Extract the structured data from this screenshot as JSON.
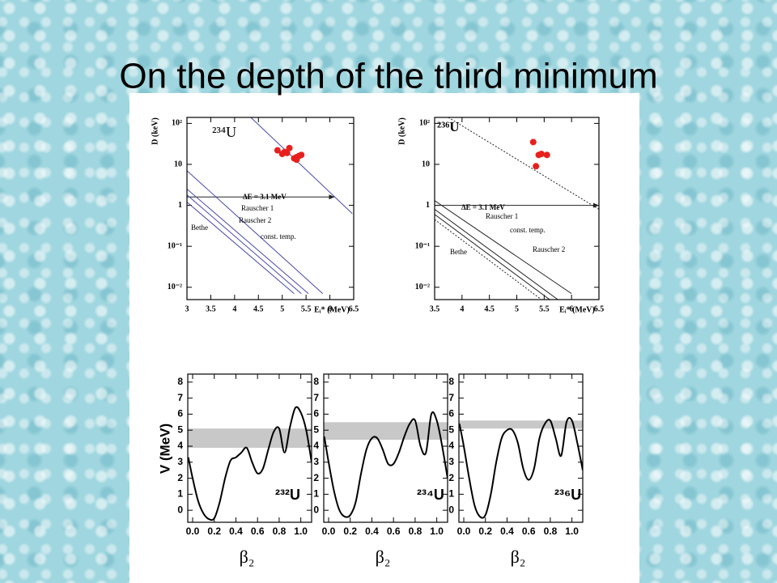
{
  "title": "On the depth of the third minimum",
  "chart_data": [
    {
      "type": "line",
      "log_y": true,
      "isotope": "²³⁴U",
      "ylabel": "D (keV)",
      "xlabel": "Eᵢ* (MeV)",
      "xlim": [
        3,
        6.5
      ],
      "xticks": [
        3,
        3.5,
        4,
        4.5,
        5,
        5.5,
        6,
        6.5
      ],
      "ylim": [
        0.005,
        140
      ],
      "yticks": [
        {
          "value": 0.01,
          "label": "10⁻²"
        },
        {
          "value": 0.1,
          "label": "10⁻¹"
        },
        1,
        10,
        {
          "value": 100,
          "label": "10²"
        }
      ],
      "annotation": {
        "text": "ΔE = 3.1 MeV",
        "x": [
          3,
          6.1
        ],
        "y": 1.6
      },
      "series": [
        {
          "color": "#4848a8",
          "x": [
            4.34,
            6.47
          ],
          "values": [
            140,
            0.63
          ]
        },
        {
          "name": "Rauscher 1",
          "color": "#4848a8",
          "x": [
            3,
            5.85
          ],
          "values": [
            7,
            0.007
          ]
        },
        {
          "name": "Rauscher 2",
          "color": "#4848a8",
          "x": [
            3,
            5.55
          ],
          "values": [
            2.5,
            0.007
          ]
        },
        {
          "name": "const. temp.",
          "color": "#4848a8",
          "x": [
            3,
            5.4
          ],
          "values": [
            1.8,
            0.007
          ]
        },
        {
          "name": "Bethe",
          "color": "#4848a8",
          "x": [
            3,
            5.25
          ],
          "values": [
            1.2,
            0.007
          ]
        },
        {
          "marker": "dot",
          "color": "#e8201c",
          "x": [
            4.9,
            5.0,
            5.05,
            5.1,
            5.15,
            5.25,
            5.3,
            5.35,
            5.4,
            5.3
          ],
          "values": [
            22,
            18,
            20,
            19,
            25,
            14,
            15,
            16,
            17,
            13
          ]
        }
      ]
    },
    {
      "type": "line",
      "log_y": true,
      "isotope": "²³⁶U",
      "ylabel": "D (keV)",
      "xlabel": "Eᵢ* (MeV)",
      "xlim": [
        3.5,
        6.5
      ],
      "xticks": [
        3.5,
        4,
        4.5,
        5,
        5.5,
        6,
        6.5
      ],
      "ylim": [
        0.005,
        140
      ],
      "yticks": [
        {
          "value": 0.01,
          "label": "10⁻²"
        },
        {
          "value": 0.1,
          "label": "10⁻¹"
        },
        1,
        10,
        {
          "value": 100,
          "label": "10²"
        }
      ],
      "annotation": {
        "text": "ΔE = 3.1 MeV",
        "x": [
          3.5,
          6.5
        ],
        "y": 1.0
      },
      "series": [
        {
          "color": "#222222",
          "dash": "dotted",
          "x": [
            3.75,
            6.5
          ],
          "values": [
            140,
            0.8
          ]
        },
        {
          "name": "Rauscher 1",
          "color": "#222222",
          "x": [
            3.5,
            6.0
          ],
          "values": [
            1.3,
            0.007
          ]
        },
        {
          "name": "const. temp.",
          "color": "#222222",
          "x": [
            3.5,
            5.75
          ],
          "values": [
            0.8,
            0.005
          ]
        },
        {
          "name": "Rauscher 2",
          "color": "#222222",
          "x": [
            3.5,
            5.6
          ],
          "values": [
            0.6,
            0.005
          ]
        },
        {
          "name": "Bethe",
          "color": "#222222",
          "dash": "dotted",
          "x": [
            3.5,
            5.45
          ],
          "values": [
            0.45,
            0.005
          ]
        },
        {
          "marker": "dot",
          "color": "#e8201c",
          "x": [
            5.3,
            5.35,
            5.4,
            5.45,
            5.55
          ],
          "values": [
            35,
            9,
            17,
            18,
            17
          ]
        }
      ]
    },
    {
      "type": "line",
      "isotope": "²³²U",
      "ylabel": "V (MeV)",
      "xlabel": "β₂",
      "xlim": [
        -0.045,
        1.1
      ],
      "ylim": [
        -0.75,
        8.5
      ],
      "xticks": [
        {
          "value": 0,
          "label": "0.0"
        },
        {
          "value": 0.2,
          "label": "0.2"
        },
        {
          "value": 0.4,
          "label": "0.4"
        },
        {
          "value": 0.6,
          "label": "0.6"
        },
        {
          "value": 0.8,
          "label": "0.8"
        },
        {
          "value": 1,
          "label": "1.0"
        }
      ],
      "yticks": [
        0,
        1,
        2,
        3,
        4,
        5,
        6,
        7,
        8
      ],
      "band": [
        3.9,
        5.1
      ],
      "series": [
        {
          "color": "#000000",
          "x": [
            -0.04,
            0,
            0.05,
            0.1,
            0.15,
            0.2,
            0.25,
            0.3,
            0.35,
            0.4,
            0.45,
            0.5,
            0.55,
            0.6,
            0.65,
            0.7,
            0.75,
            0.8,
            0.85,
            0.9,
            0.95,
            1.0,
            1.05,
            1.1
          ],
          "values": [
            3.3,
            2.0,
            0.6,
            -0.2,
            -0.55,
            -0.5,
            0.5,
            2.0,
            3.1,
            3.3,
            3.6,
            3.9,
            3.0,
            2.3,
            2.6,
            3.8,
            4.9,
            5.1,
            3.6,
            5.2,
            6.4,
            6.1,
            5.0,
            3.0
          ]
        }
      ]
    },
    {
      "type": "line",
      "isotope": "²³⁴U",
      "xlabel": "β₂",
      "xlim": [
        -0.045,
        1.1
      ],
      "ylim": [
        -0.75,
        8.5
      ],
      "xticks": [
        {
          "value": 0,
          "label": "0.0"
        },
        {
          "value": 0.2,
          "label": "0.2"
        },
        {
          "value": 0.4,
          "label": "0.4"
        },
        {
          "value": 0.6,
          "label": "0.6"
        },
        {
          "value": 0.8,
          "label": "0.8"
        },
        {
          "value": 1,
          "label": "1.0"
        }
      ],
      "yticks": [
        0,
        1,
        2,
        3,
        4,
        5,
        6,
        7,
        8
      ],
      "band": [
        4.4,
        5.5
      ],
      "series": [
        {
          "color": "#000000",
          "x": [
            -0.04,
            0,
            0.05,
            0.1,
            0.15,
            0.2,
            0.25,
            0.3,
            0.35,
            0.4,
            0.45,
            0.5,
            0.55,
            0.6,
            0.65,
            0.7,
            0.75,
            0.8,
            0.85,
            0.9,
            0.95,
            1.0,
            1.05,
            1.1
          ],
          "values": [
            4.6,
            3.0,
            1.2,
            0.0,
            -0.4,
            -0.3,
            0.5,
            2.3,
            3.8,
            4.5,
            4.5,
            3.8,
            2.9,
            2.9,
            3.6,
            4.6,
            5.4,
            5.6,
            4.0,
            3.6,
            6.0,
            5.6,
            4.0,
            2.0
          ]
        }
      ]
    },
    {
      "type": "line",
      "isotope": "²³⁶U",
      "xlabel": "β₂",
      "xlim": [
        -0.045,
        1.1
      ],
      "ylim": [
        -0.75,
        8.5
      ],
      "xticks": [
        {
          "value": 0,
          "label": "0.0"
        },
        {
          "value": 0.2,
          "label": "0.2"
        },
        {
          "value": 0.4,
          "label": "0.4"
        },
        {
          "value": 0.6,
          "label": "0.6"
        },
        {
          "value": 0.8,
          "label": "0.8"
        },
        {
          "value": 1,
          "label": "1.0"
        }
      ],
      "yticks": [
        0,
        1,
        2,
        3,
        4,
        5,
        6,
        7,
        8
      ],
      "band": [
        5.1,
        5.6
      ],
      "series": [
        {
          "color": "#000000",
          "x": [
            -0.04,
            0,
            0.05,
            0.1,
            0.15,
            0.2,
            0.25,
            0.3,
            0.35,
            0.4,
            0.45,
            0.5,
            0.55,
            0.6,
            0.65,
            0.7,
            0.75,
            0.8,
            0.85,
            0.9,
            0.95,
            1.0,
            1.05,
            1.1
          ],
          "values": [
            5.4,
            4.0,
            2.0,
            0.3,
            -0.4,
            -0.3,
            1.0,
            3.0,
            4.5,
            5.0,
            5.0,
            4.2,
            2.6,
            1.9,
            2.6,
            4.5,
            5.4,
            5.6,
            4.5,
            3.4,
            5.5,
            5.6,
            4.2,
            2.5
          ]
        }
      ]
    }
  ]
}
